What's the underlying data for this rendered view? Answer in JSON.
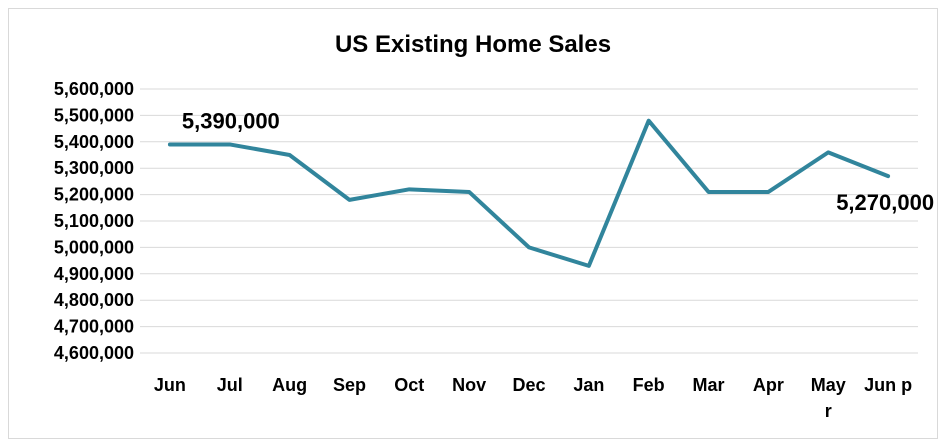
{
  "chart_data": {
    "type": "line",
    "title": "US Existing Home Sales",
    "xlabel": "",
    "ylabel": "",
    "categories": [
      "Jun",
      "Jul",
      "Aug",
      "Sep",
      "Oct",
      "Nov",
      "Dec",
      "Jan",
      "Feb",
      "Mar",
      "Apr",
      "May r",
      "Jun p"
    ],
    "series": [
      {
        "values": [
          5390000,
          5390000,
          5350000,
          5180000,
          5220000,
          5210000,
          5000000,
          4930000,
          5480000,
          5210000,
          5210000,
          5360000,
          5270000
        ]
      }
    ],
    "ylim": [
      4600000,
      5600000
    ],
    "yticks": [
      "4,600,000",
      "4,700,000",
      "4,800,000",
      "4,900,000",
      "5,000,000",
      "5,100,000",
      "5,200,000",
      "5,300,000",
      "5,400,000",
      "5,500,000",
      "5,600,000"
    ],
    "grid": true,
    "legend": "none",
    "line_color": "#31859c",
    "data_labels": [
      {
        "index": 0,
        "text": "5,390,000"
      },
      {
        "index": 12,
        "text": "5,270,000"
      }
    ]
  }
}
